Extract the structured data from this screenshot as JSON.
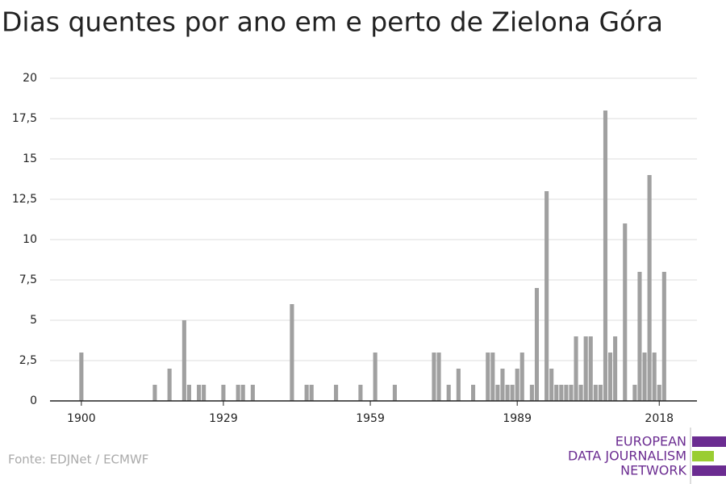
{
  "chart_data": {
    "type": "bar",
    "title": "Dias quentes por ano em e perto de Zielona Góra",
    "x": [
      1900,
      1915,
      1918,
      1921,
      1922,
      1924,
      1925,
      1929,
      1932,
      1933,
      1935,
      1943,
      1946,
      1947,
      1952,
      1957,
      1960,
      1964,
      1972,
      1973,
      1975,
      1977,
      1980,
      1983,
      1984,
      1985,
      1986,
      1987,
      1988,
      1989,
      1990,
      1992,
      1993,
      1995,
      1996,
      1997,
      1998,
      1999,
      2000,
      2001,
      2002,
      2003,
      2004,
      2005,
      2006,
      2007,
      2008,
      2009,
      2011,
      2013,
      2014,
      2015,
      2016,
      2017,
      2018,
      2019
    ],
    "values": [
      3,
      1,
      2,
      5,
      1,
      1,
      1,
      1,
      1,
      1,
      1,
      6,
      1,
      1,
      1,
      1,
      3,
      1,
      3,
      3,
      1,
      2,
      1,
      3,
      3,
      1,
      2,
      1,
      1,
      2,
      3,
      1,
      7,
      13,
      2,
      1,
      1,
      1,
      1,
      4,
      1,
      4,
      4,
      1,
      1,
      18,
      3,
      4,
      11,
      1,
      8,
      3,
      14,
      3,
      1,
      8
    ],
    "color": "#a0a0a0",
    "xlim": [
      1893.6,
      2025.7
    ],
    "xticks": [
      1900,
      1929,
      1959,
      1989,
      2018
    ],
    "ylim": [
      0,
      20
    ],
    "yticks": [
      0,
      {
        "value": 2.5,
        "label": "2,5"
      },
      5,
      {
        "value": 7.5,
        "label": "7,5"
      },
      10,
      {
        "value": 12.5,
        "label": "12,5"
      },
      15,
      {
        "value": 17.5,
        "label": "17,5"
      },
      20
    ],
    "grid": true
  },
  "source": "Fonte: EDJNet / ECMWF",
  "logo": [
    "EUROPEAN",
    "DATA JOURNALISM",
    "NETWORK"
  ]
}
